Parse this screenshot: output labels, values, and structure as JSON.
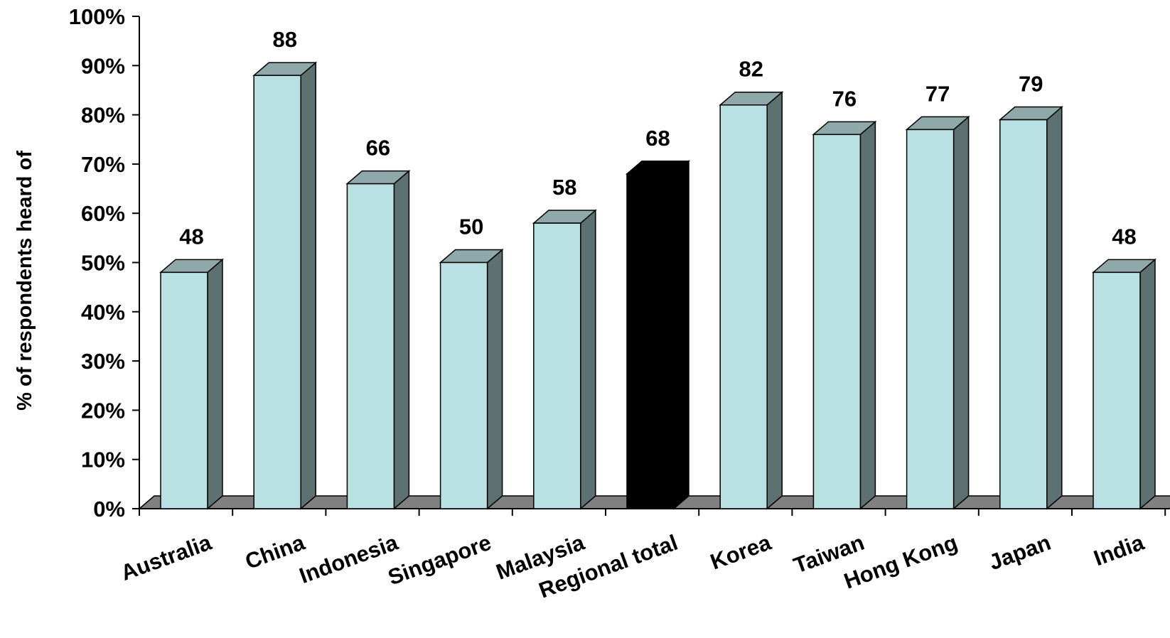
{
  "chart_data": {
    "type": "bar",
    "style": "3d-column",
    "ylabel": "% of respondents heard of",
    "xlabel": "",
    "title": "",
    "ylim": [
      0,
      100
    ],
    "y_ticks": [
      "0%",
      "10%",
      "20%",
      "30%",
      "40%",
      "50%",
      "60%",
      "70%",
      "80%",
      "90%",
      "100%"
    ],
    "categories": [
      "Australia",
      "China",
      "Indonesia",
      "Singapore",
      "Malaysia",
      "Regional total",
      "Korea",
      "Taiwan",
      "Hong Kong",
      "Japan",
      "India"
    ],
    "values": [
      48,
      88,
      66,
      50,
      58,
      68,
      82,
      76,
      77,
      79,
      48
    ],
    "highlight_category": "Regional total",
    "colors": {
      "bar_front": "#b9e0e3",
      "bar_top": "#8fa9aa",
      "bar_side": "#5e7172",
      "highlight": "#000000",
      "floor": "#808080"
    },
    "grid": false,
    "legend": "none",
    "data_labels": true
  }
}
